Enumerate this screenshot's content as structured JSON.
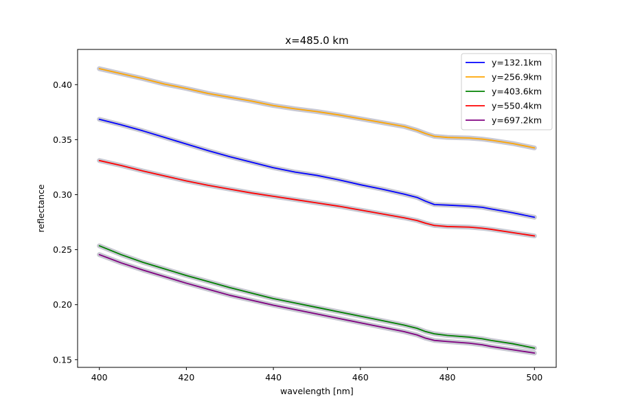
{
  "chart_data": {
    "type": "line",
    "title": "x=485.0 km",
    "xlabel": "wavelength [nm]",
    "ylabel": "reflectance",
    "xlim": [
      395,
      505
    ],
    "ylim": [
      0.143,
      0.432
    ],
    "x_ticks": [
      400,
      420,
      440,
      460,
      480,
      500
    ],
    "y_ticks": [
      0.15,
      0.2,
      0.25,
      0.3,
      0.35,
      0.4
    ],
    "grid": false,
    "legend_position": "top-right",
    "band_color": "#c8c8d2",
    "series": [
      {
        "name": "y=132.1km",
        "color": "#0000ff",
        "x": [
          400,
          405,
          410,
          415,
          420,
          425,
          430,
          435,
          440,
          445,
          450,
          455,
          460,
          465,
          470,
          473,
          475,
          477,
          480,
          485,
          488,
          490,
          495,
          500
        ],
        "y": [
          0.3685,
          0.3635,
          0.358,
          0.352,
          0.346,
          0.34,
          0.3345,
          0.3295,
          0.3245,
          0.3205,
          0.3175,
          0.3135,
          0.309,
          0.305,
          0.3005,
          0.2975,
          0.294,
          0.291,
          0.2905,
          0.2895,
          0.2885,
          0.287,
          0.2835,
          0.2795
        ]
      },
      {
        "name": "y=256.9km",
        "color": "#ffa500",
        "x": [
          400,
          405,
          410,
          415,
          420,
          425,
          430,
          435,
          440,
          445,
          450,
          455,
          460,
          465,
          470,
          473,
          475,
          477,
          480,
          485,
          488,
          490,
          495,
          500
        ],
        "y": [
          0.4145,
          0.41,
          0.4055,
          0.4005,
          0.3965,
          0.392,
          0.3885,
          0.385,
          0.381,
          0.378,
          0.3755,
          0.3725,
          0.369,
          0.3655,
          0.362,
          0.3585,
          0.3555,
          0.353,
          0.352,
          0.3515,
          0.3505,
          0.3495,
          0.3465,
          0.3425
        ]
      },
      {
        "name": "y=403.6km",
        "color": "#008000",
        "x": [
          400,
          405,
          410,
          415,
          420,
          425,
          430,
          435,
          440,
          445,
          450,
          455,
          460,
          465,
          470,
          473,
          475,
          477,
          480,
          485,
          488,
          490,
          495,
          500
        ],
        "y": [
          0.2535,
          0.2455,
          0.2385,
          0.2325,
          0.2265,
          0.221,
          0.2155,
          0.2105,
          0.2055,
          0.2015,
          0.1975,
          0.1935,
          0.1895,
          0.1855,
          0.1815,
          0.1785,
          0.1755,
          0.1735,
          0.172,
          0.1705,
          0.169,
          0.1675,
          0.1645,
          0.1605
        ]
      },
      {
        "name": "y=550.4km",
        "color": "#ff0000",
        "x": [
          400,
          405,
          410,
          415,
          420,
          425,
          430,
          435,
          440,
          445,
          450,
          455,
          460,
          465,
          470,
          473,
          475,
          477,
          480,
          485,
          488,
          490,
          495,
          500
        ],
        "y": [
          0.331,
          0.3265,
          0.3215,
          0.317,
          0.3125,
          0.3085,
          0.305,
          0.3015,
          0.2985,
          0.2955,
          0.2925,
          0.2895,
          0.286,
          0.2825,
          0.279,
          0.2765,
          0.274,
          0.272,
          0.271,
          0.2705,
          0.2695,
          0.2685,
          0.2655,
          0.2625
        ]
      },
      {
        "name": "y=697.2km",
        "color": "#800080",
        "x": [
          400,
          405,
          410,
          415,
          420,
          425,
          430,
          435,
          440,
          445,
          450,
          455,
          460,
          465,
          470,
          473,
          475,
          477,
          480,
          485,
          488,
          490,
          495,
          500
        ],
        "y": [
          0.2455,
          0.238,
          0.2315,
          0.2255,
          0.2195,
          0.214,
          0.2085,
          0.204,
          0.1995,
          0.1955,
          0.1915,
          0.1875,
          0.1835,
          0.1795,
          0.1755,
          0.1725,
          0.1695,
          0.1675,
          0.1665,
          0.165,
          0.1635,
          0.162,
          0.159,
          0.156
        ]
      }
    ]
  }
}
